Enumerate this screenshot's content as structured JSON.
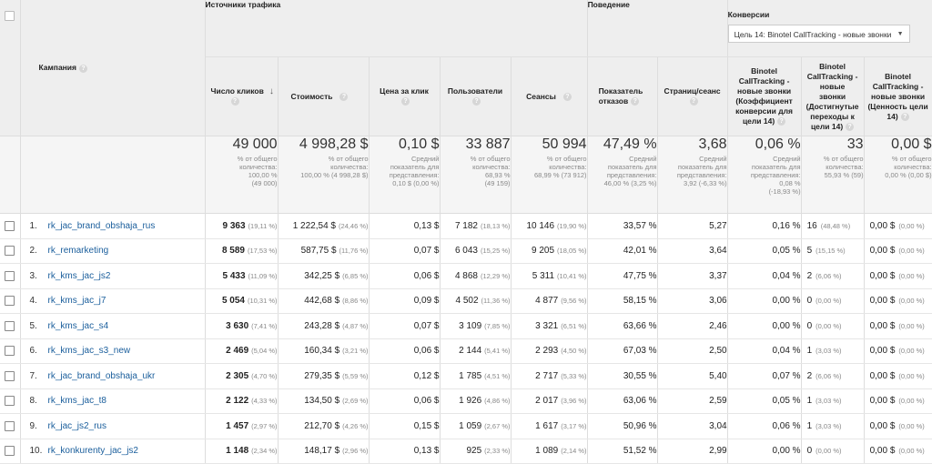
{
  "groups": {
    "traffic": "Источники трафика",
    "behavior": "Поведение",
    "conversions": "Конверсии",
    "goal_select": "Цель 14: Binotel CallTracking - новые звонки"
  },
  "columns": {
    "campaign": "Кампания",
    "clicks": "Число кликов",
    "cost": "Стоимость",
    "cpc": "Цена за клик",
    "users": "Пользователи",
    "sessions": "Сеансы",
    "bounce_l1": "Показатель",
    "bounce_l2": "отказов",
    "pages": "Страниц/сеанс",
    "conv_rate_l1": "Binotel",
    "conv_rate_l2": "CallTracking -",
    "conv_rate_l3": "новые звонки",
    "conv_rate_l4": "(Коэффициент",
    "conv_rate_l5": "конверсии для",
    "conv_rate_l6": "цели 14)",
    "goal_compl_l1": "Binotel",
    "goal_compl_l2": "CallTracking -",
    "goal_compl_l3": "новые",
    "goal_compl_l4": "звонки",
    "goal_compl_l5": "(Достигнутые",
    "goal_compl_l6": "переходы к",
    "goal_compl_l7": "цели 14)",
    "goal_value_l1": "Binotel",
    "goal_value_l2": "CallTracking -",
    "goal_value_l3": "новые звонки",
    "goal_value_l4": "(Ценность цели",
    "goal_value_l5": "14)"
  },
  "totals": {
    "clicks": {
      "big": "49 000",
      "s1": "% от общего",
      "s2": "количества:",
      "s3": "100,00 %",
      "s4": "(49 000)"
    },
    "cost": {
      "big": "4 998,28 $",
      "s1": "% от общего",
      "s2": "количества:",
      "s3": "100,00 % (4 998,28 $)"
    },
    "cpc": {
      "big": "0,10 $",
      "s1": "Средний",
      "s2": "показатель для",
      "s3": "представления:",
      "s4": "0,10 $ (0,00 %)"
    },
    "users": {
      "big": "33 887",
      "s1": "% от общего",
      "s2": "количества:",
      "s3": "68,93 %",
      "s4": "(49 159)"
    },
    "sessions": {
      "big": "50 994",
      "s1": "% от общего",
      "s2": "количества:",
      "s3": "68,99 % (73 912)"
    },
    "bounce": {
      "big": "47,49 %",
      "s1": "Средний",
      "s2": "показатель для",
      "s3": "представления:",
      "s4": "46,00 % (3,25 %)"
    },
    "pages": {
      "big": "3,68",
      "s1": "Средний",
      "s2": "показатель для",
      "s3": "представления:",
      "s4": "3,92 (-6,33 %)"
    },
    "conv_rate": {
      "big": "0,06 %",
      "s1": "Средний",
      "s2": "показатель для",
      "s3": "представления:",
      "s4": "0,08 %",
      "s5": "(-18,93 %)"
    },
    "goal_compl": {
      "big": "33",
      "s1": "% от общего",
      "s2": "количества:",
      "s3": "55,93 % (59)"
    },
    "goal_value": {
      "big": "0,00 $",
      "s1": "% от общего",
      "s2": "количества:",
      "s3": "0,00 % (0,00 $)"
    }
  },
  "rows": [
    {
      "idx": "1.",
      "name": "rk_jac_brand_obshaja_rus",
      "clicks": "9 363",
      "clicks_pct": "(19,11 %)",
      "cost": "1 222,54 $",
      "cost_pct": "(24,46 %)",
      "cpc": "0,13 $",
      "users": "7 182",
      "users_pct": "(18,13 %)",
      "sessions": "10 146",
      "sessions_pct": "(19,90 %)",
      "bounce": "33,57 %",
      "pages": "5,27",
      "conv_rate": "0,16 %",
      "goal_compl": "16",
      "goal_compl_pct": "(48,48 %)",
      "goal_value": "0,00 $",
      "goal_value_pct": "(0,00 %)"
    },
    {
      "idx": "2.",
      "name": "rk_remarketing",
      "clicks": "8 589",
      "clicks_pct": "(17,53 %)",
      "cost": "587,75 $",
      "cost_pct": "(11,76 %)",
      "cpc": "0,07 $",
      "users": "6 043",
      "users_pct": "(15,25 %)",
      "sessions": "9 205",
      "sessions_pct": "(18,05 %)",
      "bounce": "42,01 %",
      "pages": "3,64",
      "conv_rate": "0,05 %",
      "goal_compl": "5",
      "goal_compl_pct": "(15,15 %)",
      "goal_value": "0,00 $",
      "goal_value_pct": "(0,00 %)"
    },
    {
      "idx": "3.",
      "name": "rk_kms_jac_js2",
      "clicks": "5 433",
      "clicks_pct": "(11,09 %)",
      "cost": "342,25 $",
      "cost_pct": "(6,85 %)",
      "cpc": "0,06 $",
      "users": "4 868",
      "users_pct": "(12,29 %)",
      "sessions": "5 311",
      "sessions_pct": "(10,41 %)",
      "bounce": "47,75 %",
      "pages": "3,37",
      "conv_rate": "0,04 %",
      "goal_compl": "2",
      "goal_compl_pct": "(6,06 %)",
      "goal_value": "0,00 $",
      "goal_value_pct": "(0,00 %)"
    },
    {
      "idx": "4.",
      "name": "rk_kms_jac_j7",
      "clicks": "5 054",
      "clicks_pct": "(10,31 %)",
      "cost": "442,68 $",
      "cost_pct": "(8,86 %)",
      "cpc": "0,09 $",
      "users": "4 502",
      "users_pct": "(11,36 %)",
      "sessions": "4 877",
      "sessions_pct": "(9,56 %)",
      "bounce": "58,15 %",
      "pages": "3,06",
      "conv_rate": "0,00 %",
      "goal_compl": "0",
      "goal_compl_pct": "(0,00 %)",
      "goal_value": "0,00 $",
      "goal_value_pct": "(0,00 %)"
    },
    {
      "idx": "5.",
      "name": "rk_kms_jac_s4",
      "clicks": "3 630",
      "clicks_pct": "(7,41 %)",
      "cost": "243,28 $",
      "cost_pct": "(4,87 %)",
      "cpc": "0,07 $",
      "users": "3 109",
      "users_pct": "(7,85 %)",
      "sessions": "3 321",
      "sessions_pct": "(6,51 %)",
      "bounce": "63,66 %",
      "pages": "2,46",
      "conv_rate": "0,00 %",
      "goal_compl": "0",
      "goal_compl_pct": "(0,00 %)",
      "goal_value": "0,00 $",
      "goal_value_pct": "(0,00 %)"
    },
    {
      "idx": "6.",
      "name": "rk_kms_jac_s3_new",
      "clicks": "2 469",
      "clicks_pct": "(5,04 %)",
      "cost": "160,34 $",
      "cost_pct": "(3,21 %)",
      "cpc": "0,06 $",
      "users": "2 144",
      "users_pct": "(5,41 %)",
      "sessions": "2 293",
      "sessions_pct": "(4,50 %)",
      "bounce": "67,03 %",
      "pages": "2,50",
      "conv_rate": "0,04 %",
      "goal_compl": "1",
      "goal_compl_pct": "(3,03 %)",
      "goal_value": "0,00 $",
      "goal_value_pct": "(0,00 %)"
    },
    {
      "idx": "7.",
      "name": "rk_jac_brand_obshaja_ukr",
      "clicks": "2 305",
      "clicks_pct": "(4,70 %)",
      "cost": "279,35 $",
      "cost_pct": "(5,59 %)",
      "cpc": "0,12 $",
      "users": "1 785",
      "users_pct": "(4,51 %)",
      "sessions": "2 717",
      "sessions_pct": "(5,33 %)",
      "bounce": "30,55 %",
      "pages": "5,40",
      "conv_rate": "0,07 %",
      "goal_compl": "2",
      "goal_compl_pct": "(6,06 %)",
      "goal_value": "0,00 $",
      "goal_value_pct": "(0,00 %)"
    },
    {
      "idx": "8.",
      "name": "rk_kms_jac_t8",
      "clicks": "2 122",
      "clicks_pct": "(4,33 %)",
      "cost": "134,50 $",
      "cost_pct": "(2,69 %)",
      "cpc": "0,06 $",
      "users": "1 926",
      "users_pct": "(4,86 %)",
      "sessions": "2 017",
      "sessions_pct": "(3,96 %)",
      "bounce": "63,06 %",
      "pages": "2,59",
      "conv_rate": "0,05 %",
      "goal_compl": "1",
      "goal_compl_pct": "(3,03 %)",
      "goal_value": "0,00 $",
      "goal_value_pct": "(0,00 %)"
    },
    {
      "idx": "9.",
      "name": "rk_jac_js2_rus",
      "clicks": "1 457",
      "clicks_pct": "(2,97 %)",
      "cost": "212,70 $",
      "cost_pct": "(4,26 %)",
      "cpc": "0,15 $",
      "users": "1 059",
      "users_pct": "(2,67 %)",
      "sessions": "1 617",
      "sessions_pct": "(3,17 %)",
      "bounce": "50,96 %",
      "pages": "3,04",
      "conv_rate": "0,06 %",
      "goal_compl": "1",
      "goal_compl_pct": "(3,03 %)",
      "goal_value": "0,00 $",
      "goal_value_pct": "(0,00 %)"
    },
    {
      "idx": "10.",
      "name": "rk_konkurenty_jac_js2",
      "clicks": "1 148",
      "clicks_pct": "(2,34 %)",
      "cost": "148,17 $",
      "cost_pct": "(2,96 %)",
      "cpc": "0,13 $",
      "users": "925",
      "users_pct": "(2,33 %)",
      "sessions": "1 089",
      "sessions_pct": "(2,14 %)",
      "bounce": "51,52 %",
      "pages": "2,99",
      "conv_rate": "0,00 %",
      "goal_compl": "0",
      "goal_compl_pct": "(0,00 %)",
      "goal_value": "0,00 $",
      "goal_value_pct": "(0,00 %)"
    }
  ]
}
